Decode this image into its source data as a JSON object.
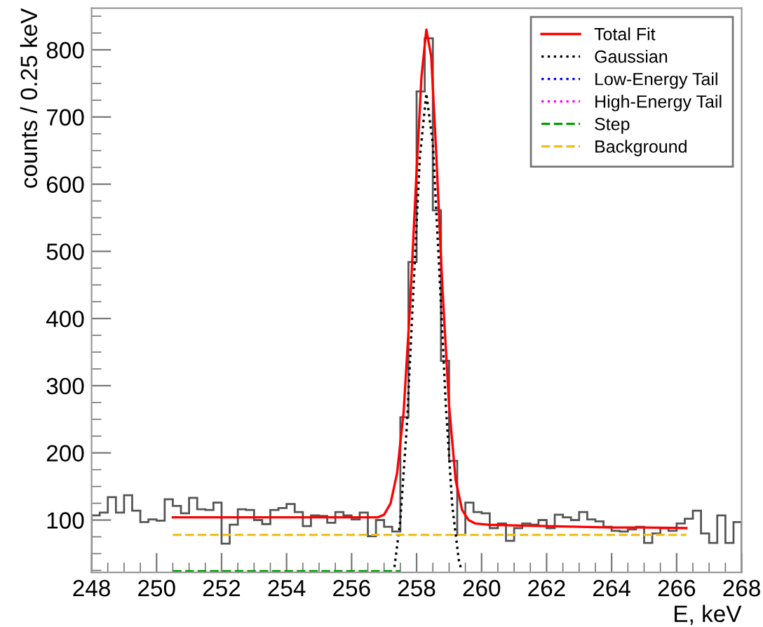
{
  "chart_data": {
    "type": "histogram",
    "xlabel": "E, keV",
    "ylabel": "counts / 0.25 keV",
    "xlim": [
      248,
      268
    ],
    "xticks": [
      248,
      250,
      252,
      254,
      256,
      258,
      260,
      262,
      264,
      266,
      268
    ],
    "ylim": [
      22,
      862
    ],
    "yticks": [
      100,
      200,
      300,
      400,
      500,
      600,
      700,
      800
    ],
    "grid": false,
    "legend": "top right",
    "color": "#555555",
    "bins": [
      248,
      248.25,
      248.5,
      248.75,
      249,
      249.25,
      249.5,
      249.75,
      250,
      250.25,
      250.5,
      250.75,
      251,
      251.25,
      251.5,
      251.75,
      252,
      252.25,
      252.5,
      252.75,
      253,
      253.25,
      253.5,
      253.75,
      254,
      254.25,
      254.5,
      254.75,
      255,
      255.25,
      255.5,
      255.75,
      256,
      256.25,
      256.5,
      256.75,
      257,
      257.25,
      257.5,
      257.75,
      258,
      258.25,
      258.5,
      258.75,
      259,
      259.25,
      259.5,
      259.75,
      260,
      260.25,
      260.5,
      260.75,
      261,
      261.25,
      261.5,
      261.75,
      262,
      262.25,
      262.5,
      262.75,
      263,
      263.25,
      263.5,
      263.75,
      264,
      264.25,
      264.5,
      264.75,
      265,
      265.25,
      265.5,
      265.75,
      266,
      266.25,
      266.5,
      266.75,
      267,
      267.25,
      267.5,
      267.75,
      268
    ],
    "values": [
      107,
      111,
      134,
      111,
      137,
      114,
      97,
      101,
      99,
      131,
      121,
      110,
      133,
      116,
      115,
      126,
      65,
      93,
      116,
      115,
      100,
      94,
      115,
      118,
      124,
      112,
      91,
      107,
      106,
      96,
      112,
      107,
      101,
      111,
      76,
      100,
      90,
      83,
      253,
      484,
      738,
      817,
      561,
      337,
      188,
      78,
      126,
      112,
      110,
      88,
      95,
      69,
      88,
      95,
      93,
      100,
      88,
      108,
      104,
      100,
      112,
      101,
      98,
      90,
      84,
      83,
      86,
      90,
      66,
      80,
      88,
      84,
      95,
      102,
      114,
      80,
      66,
      107,
      66,
      97
    ],
    "series": [
      {
        "name": "Total Fit",
        "type": "line",
        "color": "#ff0000",
        "line_style": "solid",
        "x": [
          250.5,
          252,
          254,
          256,
          256.8,
          257.0,
          257.2,
          257.4,
          257.6,
          257.8,
          258.0,
          258.15,
          258.3,
          258.45,
          258.6,
          258.8,
          259.0,
          259.2,
          259.4,
          259.6,
          259.8,
          260.2,
          261,
          262,
          263,
          264,
          265,
          266.3
        ],
        "values": [
          104,
          104,
          104,
          104,
          104,
          108,
          125,
          170,
          260,
          420,
          620,
          760,
          830,
          790,
          650,
          440,
          270,
          160,
          115,
          100,
          95,
          93,
          92,
          91,
          90,
          89,
          89,
          88
        ]
      },
      {
        "name": "Gaussian",
        "type": "line",
        "color": "#000000",
        "line_style": "dotted",
        "x": [
          257.32,
          257.5,
          257.7,
          257.9,
          258.1,
          258.3,
          258.5,
          258.7,
          258.9,
          259.1,
          259.3,
          259.38
        ],
        "values": [
          30,
          100,
          240,
          440,
          640,
          735,
          660,
          470,
          270,
          120,
          40,
          26
        ]
      },
      {
        "name": "Low-Energy Tail",
        "type": "line",
        "color": "#0000ff",
        "line_style": "dotted"
      },
      {
        "name": "High-Energy Tail",
        "type": "line",
        "color": "#ff00ff",
        "line_style": "dotted"
      },
      {
        "name": "Step",
        "type": "line",
        "color": "#00a000",
        "line_style": "dashed",
        "x": [
          250.5,
          257.5
        ],
        "values": [
          24,
          24
        ]
      },
      {
        "name": "Background",
        "type": "line",
        "color": "#f0c020",
        "line_style": "dashed",
        "x": [
          250.5,
          266.3
        ],
        "values": [
          78,
          78
        ]
      }
    ]
  }
}
